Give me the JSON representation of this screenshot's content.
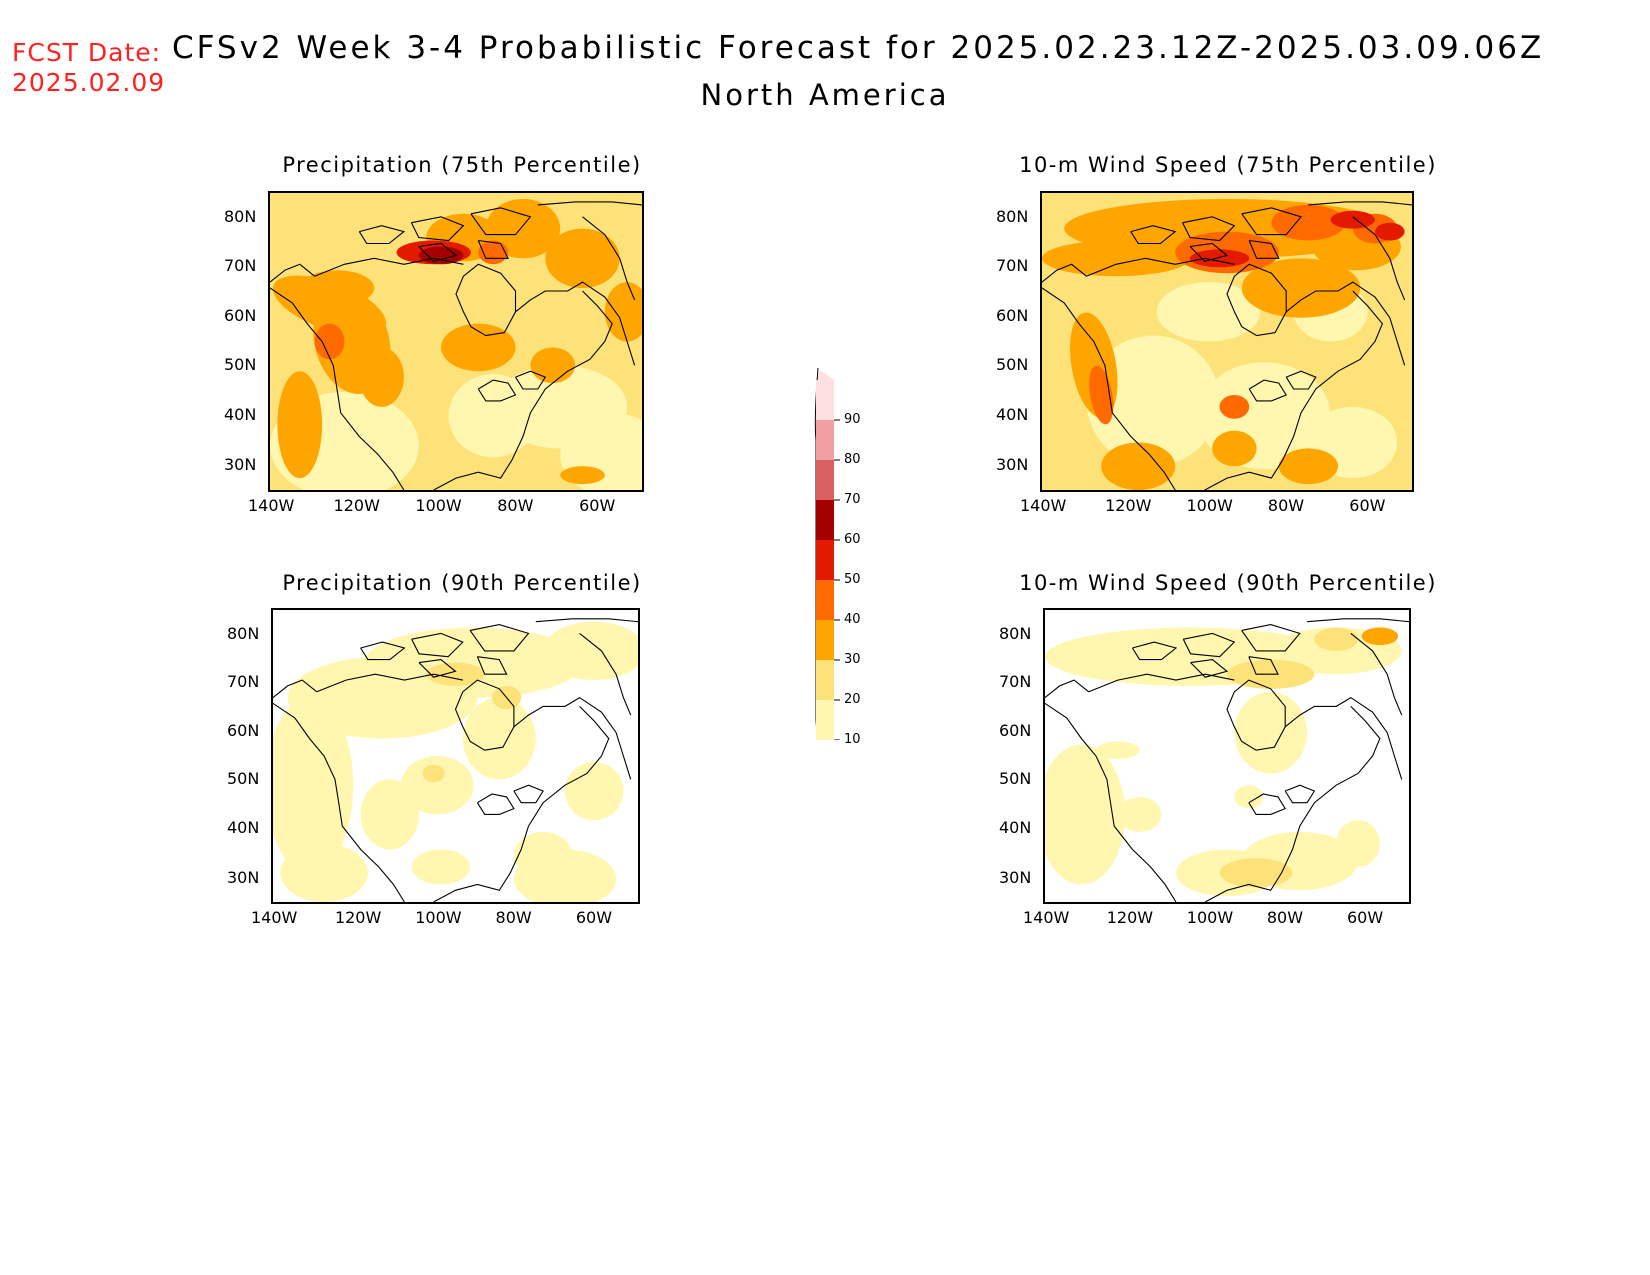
{
  "header": {
    "fcst_label": "FCST Date:",
    "fcst_date": "2025.02.09",
    "title": "CFSv2 Week 3-4 Probabilistic Forecast for 2025.02.23.12Z-2025.03.09.06Z",
    "subtitle": "North America"
  },
  "panels": [
    {
      "title": "Precipitation (75th Percentile)",
      "level": "high"
    },
    {
      "title": "10-m Wind Speed (75th Percentile)",
      "level": "high"
    },
    {
      "title": "Precipitation (90th Percentile)",
      "level": "low"
    },
    {
      "title": "10-m Wind Speed (90th Percentile)",
      "level": "low"
    }
  ],
  "lat_labels": [
    "80N",
    "70N",
    "60N",
    "50N",
    "40N",
    "30N"
  ],
  "lon_labels": [
    "140W",
    "120W",
    "100W",
    "80W",
    "60W"
  ],
  "colorbar": {
    "levels": [
      "10",
      "20",
      "30",
      "40",
      "50",
      "60",
      "70",
      "80",
      "90"
    ],
    "colors": [
      "#fff7b0",
      "#fde27a",
      "#ffa500",
      "#ff6a00",
      "#e31a00",
      "#a40000",
      "#d86060",
      "#f0a0a0",
      "#fde0e0"
    ]
  }
}
